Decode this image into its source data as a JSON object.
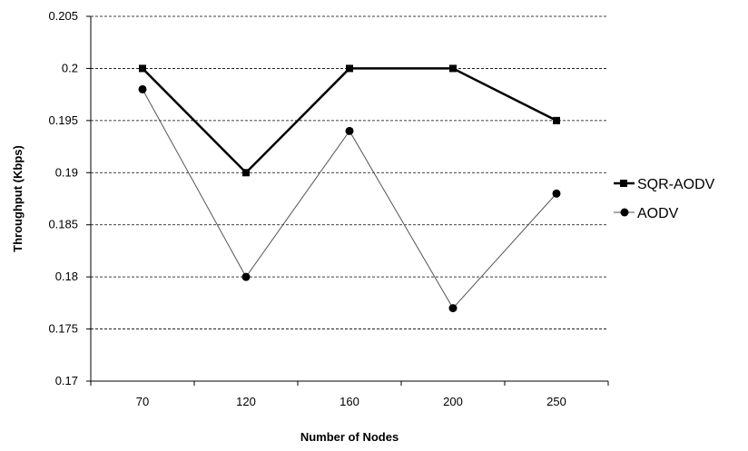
{
  "chart_data": {
    "type": "line",
    "title": "",
    "xlabel": "Number of Nodes",
    "ylabel": "Throughput (Kbps)",
    "categories": [
      "70",
      "120",
      "160",
      "200",
      "250"
    ],
    "ylim": [
      0.17,
      0.205
    ],
    "yticks": [
      "0.17",
      "0.175",
      "0.18",
      "0.185",
      "0.19",
      "0.195",
      "0.2",
      "0.205"
    ],
    "grid": "horizontal dashed",
    "legend_position": "right",
    "series": [
      {
        "name": "SQR-AODV",
        "marker": "square",
        "color": "#000000",
        "values": [
          0.2,
          0.19,
          0.2,
          0.2,
          0.195
        ]
      },
      {
        "name": "AODV",
        "marker": "circle",
        "color": "#000000",
        "values": [
          0.198,
          0.18,
          0.194,
          0.177,
          0.188
        ]
      }
    ]
  }
}
